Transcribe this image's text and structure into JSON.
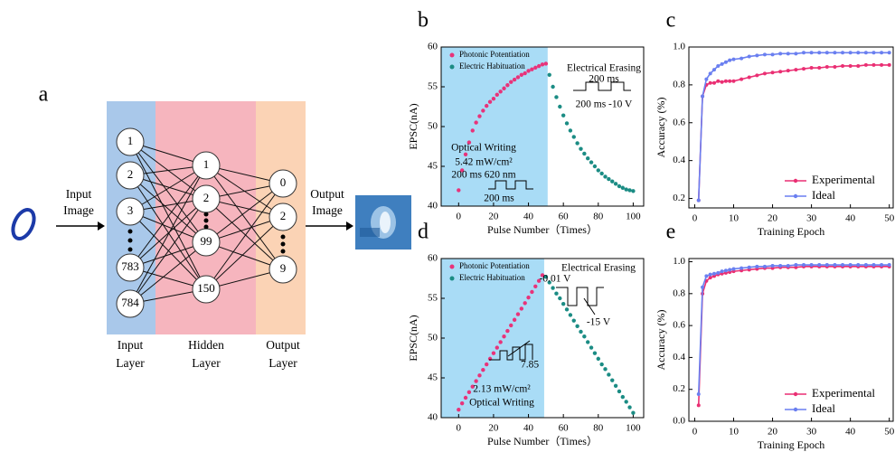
{
  "diagram": {
    "panel": "a",
    "input_image_label": [
      "Input",
      "Image"
    ],
    "output_image_label": [
      "Output",
      "Image"
    ],
    "input_nodes": [
      "1",
      "2",
      "3",
      "783",
      "784"
    ],
    "hidden_nodes": [
      "1",
      "2",
      "99",
      "150"
    ],
    "output_nodes": [
      "0",
      "2",
      "9"
    ],
    "layer_labels": [
      [
        "Input",
        "Layer"
      ],
      [
        "Hidden",
        "Layer"
      ],
      [
        "Output",
        "Layer"
      ]
    ]
  },
  "chart_data": [
    {
      "type": "scatter",
      "panel": "b",
      "xlabel": "Pulse Number（Times）",
      "ylabel": "EPSC(nA)",
      "xlim": [
        -10,
        106
      ],
      "ylim": [
        40,
        60
      ],
      "xticks": [
        0,
        20,
        40,
        60,
        80,
        100
      ],
      "yticks": [
        40,
        45,
        50,
        55,
        60
      ],
      "highlight_span": [
        -10,
        51
      ],
      "highlight_color": "#a9dcf6",
      "legend": "top-left",
      "annotations": [
        "Electrical Erasing",
        "200 ms",
        "200 ms  -10 V",
        "Optical Writing",
        "5.42 mW/cm²",
        "200 ms  620 nm",
        "200 ms"
      ],
      "series": [
        {
          "name": "Photonic Potentiation",
          "color": "#e8337a",
          "x": [
            0,
            2,
            4,
            6,
            8,
            10,
            12,
            14,
            16,
            18,
            20,
            22,
            24,
            26,
            28,
            30,
            32,
            34,
            36,
            38,
            40,
            42,
            44,
            46,
            48,
            50
          ],
          "values": [
            42,
            44.5,
            46.5,
            48,
            49.5,
            50.5,
            51.3,
            52,
            52.6,
            53.1,
            53.5,
            54,
            54.4,
            54.8,
            55.2,
            55.6,
            55.9,
            56.2,
            56.5,
            56.7,
            57,
            57.2,
            57.4,
            57.6,
            57.8,
            57.9
          ]
        },
        {
          "name": "Electric Habituation",
          "color": "#1b8c84",
          "x": [
            52,
            54,
            56,
            58,
            60,
            62,
            64,
            66,
            68,
            70,
            72,
            74,
            76,
            78,
            80,
            82,
            84,
            86,
            88,
            90,
            92,
            94,
            96,
            98,
            100
          ],
          "values": [
            56.5,
            55,
            53.7,
            52.5,
            51.4,
            50.4,
            49.5,
            48.7,
            47.9,
            47.2,
            46.6,
            46,
            45.5,
            45,
            44.5,
            44.1,
            43.7,
            43.4,
            43.1,
            42.8,
            42.5,
            42.3,
            42.1,
            42,
            41.9
          ]
        }
      ]
    },
    {
      "type": "line",
      "panel": "c",
      "xlabel": "Training Epoch",
      "ylabel": "Accuracy (%)",
      "xlim": [
        -1.5,
        51
      ],
      "ylim": [
        0.15,
        1.0
      ],
      "xticks": [
        0,
        10,
        20,
        30,
        40,
        50
      ],
      "yticks": [
        0.2,
        0.4,
        0.6,
        0.8,
        {
          "value": 1,
          "label": "1.0"
        }
      ],
      "legend": "bottom-right",
      "x": [
        1,
        2,
        3,
        4,
        5,
        6,
        7,
        8,
        9,
        10,
        12,
        14,
        16,
        18,
        20,
        22,
        24,
        26,
        28,
        30,
        32,
        34,
        36,
        38,
        40,
        42,
        44,
        46,
        48,
        50
      ],
      "series": [
        {
          "name": "Experimental",
          "color": "#ea2f73",
          "values": [
            0.19,
            0.74,
            0.8,
            0.81,
            0.81,
            0.82,
            0.815,
            0.82,
            0.82,
            0.82,
            0.83,
            0.84,
            0.85,
            0.86,
            0.865,
            0.87,
            0.875,
            0.88,
            0.885,
            0.89,
            0.89,
            0.895,
            0.895,
            0.9,
            0.9,
            0.9,
            0.905,
            0.905,
            0.905,
            0.905
          ]
        },
        {
          "name": "Ideal",
          "color": "#6a7ff0",
          "values": [
            0.19,
            0.74,
            0.83,
            0.86,
            0.88,
            0.9,
            0.91,
            0.92,
            0.93,
            0.935,
            0.94,
            0.95,
            0.955,
            0.96,
            0.96,
            0.965,
            0.965,
            0.965,
            0.97,
            0.97,
            0.97,
            0.97,
            0.97,
            0.97,
            0.97,
            0.97,
            0.97,
            0.97,
            0.97,
            0.97
          ]
        }
      ]
    },
    {
      "type": "scatter",
      "panel": "d",
      "xlabel": "Pulse Number（Times）",
      "ylabel": "EPSC(nA)",
      "xlim": [
        -10,
        106
      ],
      "ylim": [
        40,
        60
      ],
      "xticks": [
        0,
        20,
        40,
        60,
        80,
        100
      ],
      "yticks": [
        40,
        45,
        50,
        55,
        60
      ],
      "highlight_span": [
        -10,
        49
      ],
      "highlight_color": "#a9dcf6",
      "legend": "top-left",
      "annotations": [
        "Electrical Erasing",
        "-0.01 V",
        "-15 V",
        "7.85",
        "2.13 mW/cm²",
        "Optical Writing"
      ],
      "series": [
        {
          "name": "Photonic Potentiation",
          "color": "#e8337a",
          "x": [
            0,
            2,
            4,
            6,
            8,
            10,
            12,
            14,
            16,
            18,
            20,
            22,
            24,
            26,
            28,
            30,
            32,
            34,
            36,
            38,
            40,
            42,
            44,
            46,
            48
          ],
          "values": [
            41,
            41.8,
            42.5,
            43.2,
            43.9,
            44.6,
            45.3,
            46,
            46.7,
            47.4,
            48.1,
            48.8,
            49.5,
            50.2,
            50.9,
            51.6,
            52.3,
            53,
            53.7,
            54.4,
            55.1,
            55.8,
            56.5,
            57.2,
            57.9
          ]
        },
        {
          "name": "Electric Habituation",
          "color": "#1b8c84",
          "x": [
            50,
            52,
            54,
            56,
            58,
            60,
            62,
            64,
            66,
            68,
            70,
            72,
            74,
            76,
            78,
            80,
            82,
            84,
            86,
            88,
            90,
            92,
            94,
            96,
            98,
            100
          ],
          "values": [
            57.7,
            57,
            56.3,
            55.6,
            55,
            54.3,
            53.6,
            52.9,
            52.2,
            51.5,
            50.8,
            50.2,
            49.5,
            48.8,
            48.1,
            47.4,
            46.7,
            46.1,
            45.4,
            44.7,
            44,
            43.3,
            42.6,
            42,
            41.3,
            40.6
          ]
        }
      ]
    },
    {
      "type": "line",
      "panel": "e",
      "xlabel": "Training Epoch",
      "ylabel": "Accuracy (%)",
      "xlim": [
        -1.5,
        51
      ],
      "ylim": [
        0,
        1.02
      ],
      "xticks": [
        0,
        10,
        20,
        30,
        40,
        50
      ],
      "yticks": [
        {
          "value": 0,
          "label": "0.0"
        },
        0.2,
        0.4,
        0.6,
        0.8,
        {
          "value": 1,
          "label": "1.0"
        }
      ],
      "legend": "bottom-right",
      "x": [
        1,
        2,
        3,
        4,
        5,
        6,
        7,
        8,
        9,
        10,
        12,
        14,
        16,
        18,
        20,
        22,
        24,
        26,
        28,
        30,
        32,
        34,
        36,
        38,
        40,
        42,
        44,
        46,
        48,
        50
      ],
      "series": [
        {
          "name": "Experimental",
          "color": "#ea2f73",
          "values": [
            0.1,
            0.8,
            0.88,
            0.9,
            0.91,
            0.92,
            0.925,
            0.93,
            0.935,
            0.94,
            0.945,
            0.95,
            0.955,
            0.96,
            0.96,
            0.965,
            0.965,
            0.965,
            0.97,
            0.97,
            0.97,
            0.97,
            0.97,
            0.97,
            0.97,
            0.97,
            0.97,
            0.97,
            0.97,
            0.97
          ]
        },
        {
          "name": "Ideal",
          "color": "#6a7ff0",
          "values": [
            0.17,
            0.84,
            0.91,
            0.92,
            0.925,
            0.93,
            0.94,
            0.945,
            0.95,
            0.955,
            0.96,
            0.965,
            0.97,
            0.97,
            0.975,
            0.975,
            0.975,
            0.98,
            0.98,
            0.98,
            0.98,
            0.98,
            0.98,
            0.98,
            0.98,
            0.98,
            0.98,
            0.98,
            0.98,
            0.98
          ]
        }
      ]
    }
  ]
}
